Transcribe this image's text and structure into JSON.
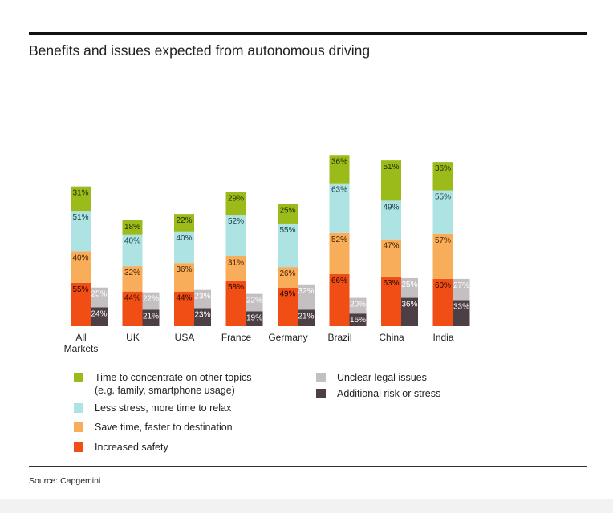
{
  "page_title": "Benefits and issues expected from autonomous driving",
  "source": "Source: Capgemini",
  "colors": {
    "time": "#9bbb1a",
    "stress": "#ade3e3",
    "save": "#f8ad5a",
    "safety": "#f04e14",
    "legal": "#c4c0c2",
    "risk": "#4d3f46"
  },
  "legend": [
    {
      "key": "time",
      "label": "Time to concentrate on other topics\n(e.g. family, smartphone usage)"
    },
    {
      "key": "stress",
      "label": "Less stress, more time to relax"
    },
    {
      "key": "save",
      "label": "Save time, faster to destination"
    },
    {
      "key": "safety",
      "label": "Increased safety"
    },
    {
      "key": "legal",
      "label": "Unclear legal issues"
    },
    {
      "key": "risk",
      "label": "Additional risk or stress"
    }
  ],
  "chart_data": {
    "type": "bar",
    "title": "Benefits and issues expected from autonomous driving",
    "categories": [
      "All\nMarkets",
      "UK",
      "USA",
      "France",
      "Germany",
      "Brazil",
      "China",
      "India"
    ],
    "stack_benefits": [
      {
        "name": "Increased safety",
        "key": "safety",
        "values": [
          55,
          44,
          44,
          58,
          49,
          66,
          63,
          60
        ]
      },
      {
        "name": "Save time, faster to destination",
        "key": "save",
        "values": [
          40,
          32,
          36,
          31,
          26,
          52,
          47,
          57
        ]
      },
      {
        "name": "Less stress, more time to relax",
        "key": "stress",
        "values": [
          51,
          40,
          40,
          52,
          55,
          63,
          49,
          55
        ]
      },
      {
        "name": "Time to concentrate on other topics (e.g. family, smartphone usage)",
        "key": "time",
        "values": [
          31,
          18,
          22,
          29,
          25,
          36,
          51,
          36
        ]
      }
    ],
    "stack_issues": [
      {
        "name": "Additional risk or stress",
        "key": "risk",
        "values": [
          24,
          21,
          23,
          19,
          21,
          16,
          36,
          33
        ]
      },
      {
        "name": "Unclear legal issues",
        "key": "legal",
        "values": [
          25,
          22,
          23,
          22,
          32,
          20,
          25,
          27
        ]
      }
    ],
    "value_suffix": "%",
    "ylim": [
      0,
      220
    ],
    "xlabel": "",
    "ylabel": ""
  }
}
